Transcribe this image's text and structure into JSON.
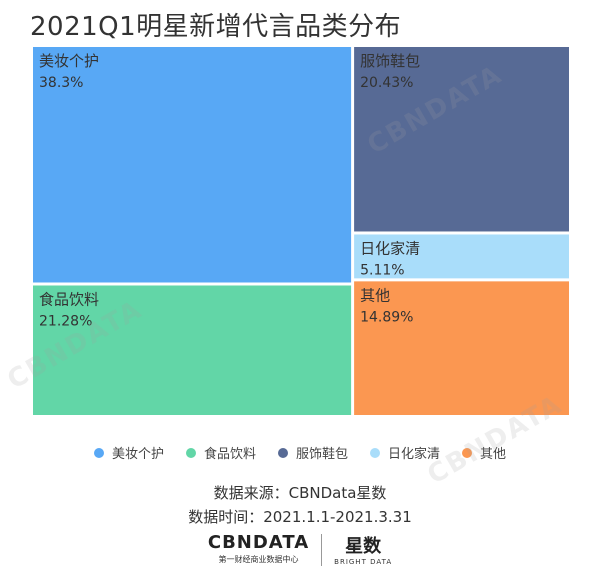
{
  "title": "2021Q1明星新增代言品类分布",
  "chart_data": {
    "type": "treemap",
    "items": [
      {
        "name": "美妆个护",
        "value": 38.3,
        "label": "38.3%",
        "color": "#58a8f5"
      },
      {
        "name": "食品饮料",
        "value": 21.28,
        "label": "21.28%",
        "color": "#62d6a7"
      },
      {
        "name": "服饰鞋包",
        "value": 20.43,
        "label": "20.43%",
        "color": "#576a95"
      },
      {
        "name": "日化家清",
        "value": 5.11,
        "label": "5.11%",
        "color": "#a9ddfa"
      },
      {
        "name": "其他",
        "value": 14.89,
        "label": "14.89%",
        "color": "#fb9751"
      }
    ],
    "legend": [
      "美妆个护",
      "食品饮料",
      "服饰鞋包",
      "日化家清",
      "其他"
    ]
  },
  "source": {
    "line1": "数据来源：CBNData星数",
    "line2": "数据时间：2021.1.1-2021.3.31"
  },
  "logo": {
    "cbn_main": "CBNDATA",
    "cbn_sub": "第一财经商业数据中心",
    "xs_main": "星数",
    "xs_sub": "BRIGHT DATA"
  },
  "watermark": {
    "text": "CBNDATA"
  }
}
